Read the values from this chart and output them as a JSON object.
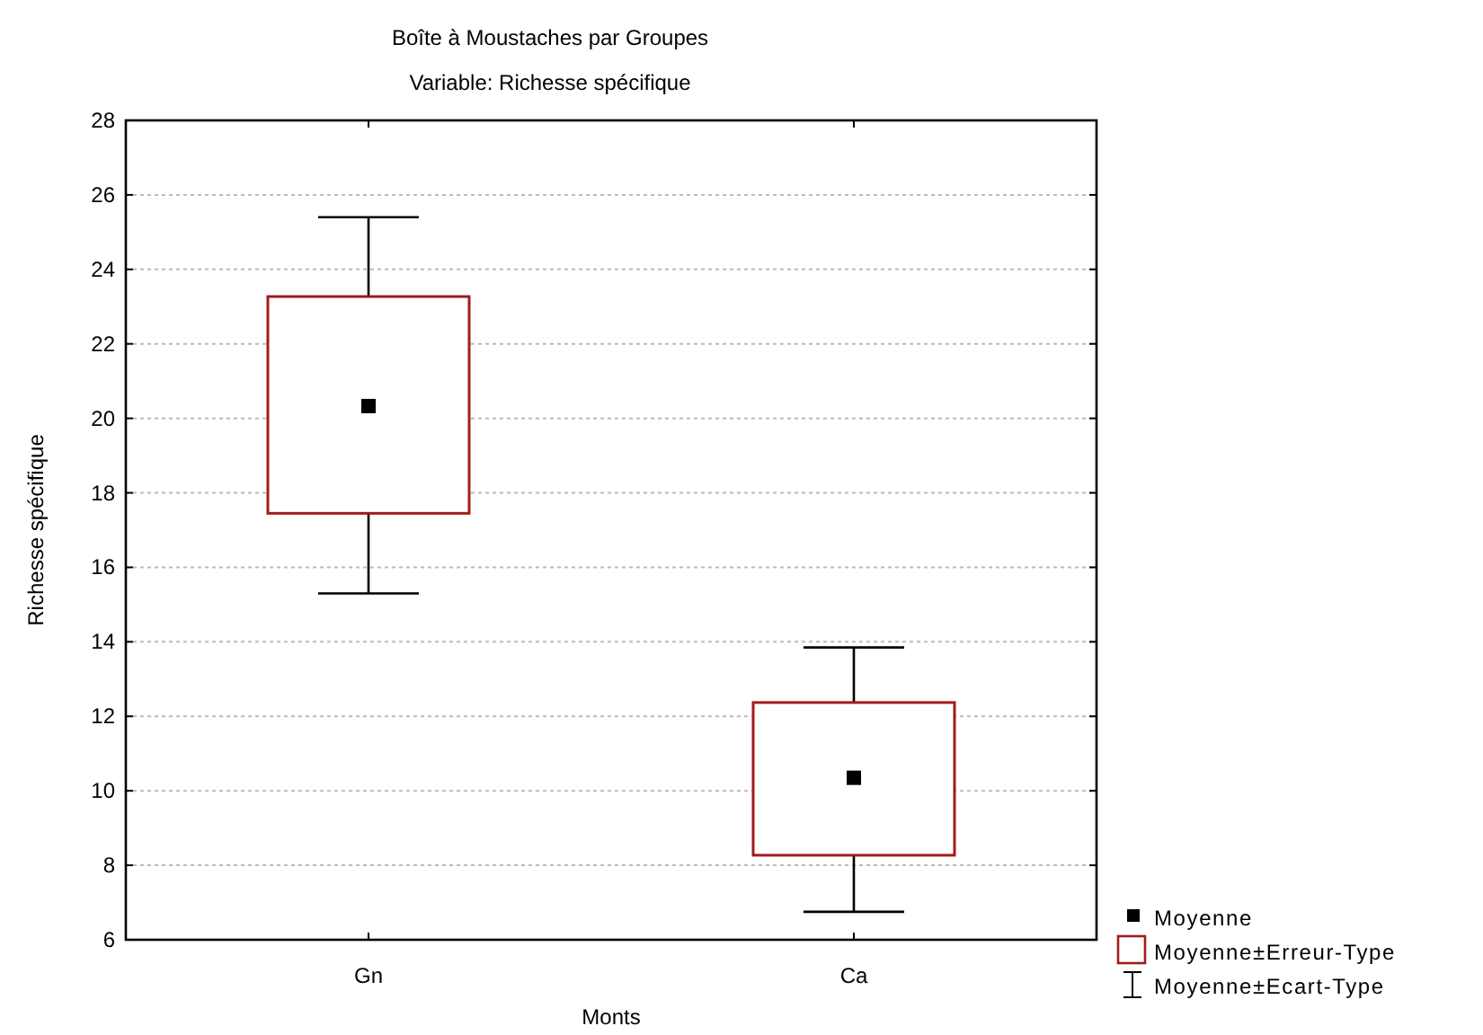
{
  "chart_data": {
    "type": "box",
    "title": "Boîte à Moustaches par Groupes",
    "subtitle": "Variable: Richesse spécifique",
    "xlabel": "Monts",
    "ylabel": "Richesse spécifique",
    "categories": [
      "Gn",
      "Ca"
    ],
    "boxes": [
      {
        "low": 15.3,
        "q1": 17.45,
        "median": 20.33,
        "q3": 23.27,
        "high": 25.4
      },
      {
        "low": 6.75,
        "q1": 8.27,
        "median": 10.35,
        "q3": 12.37,
        "high": 13.85
      }
    ],
    "color": "#a01c1c",
    "ylim": [
      6,
      28
    ],
    "yticks": [
      6,
      8,
      10,
      12,
      14,
      16,
      18,
      20,
      22,
      24,
      26,
      28
    ],
    "grid": "y",
    "annotations": [
      "Moyenne",
      "Moyenne±Erreur-Type",
      "Moyenne±Ecart-Type"
    ]
  }
}
